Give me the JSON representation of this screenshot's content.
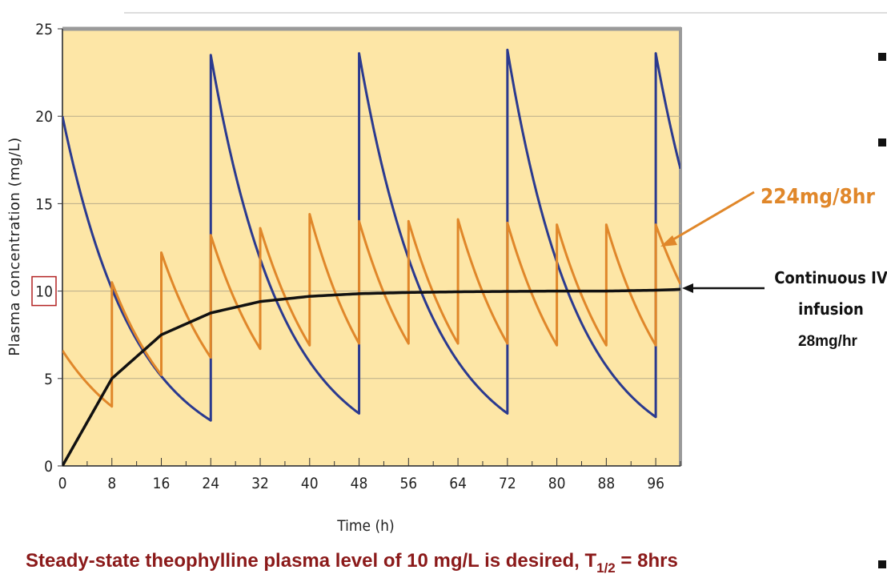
{
  "chart_data": {
    "type": "line",
    "ylabel": "Plasma concentration (mg/L)",
    "xlabel": "Time (h)",
    "xlim": [
      0,
      100
    ],
    "ylim": [
      0,
      25
    ],
    "x_ticks": [
      0,
      8,
      16,
      24,
      32,
      40,
      48,
      56,
      64,
      72,
      80,
      88,
      96
    ],
    "y_ticks": [
      0,
      5,
      10,
      15,
      20,
      25
    ],
    "highlighted_y_tick": 10,
    "grid": "horizontal",
    "series": [
      {
        "color": "#2b3a8f",
        "peaks": [
          [
            0,
            20.0
          ],
          [
            24,
            23.5
          ],
          [
            48,
            23.6
          ],
          [
            72,
            23.8
          ],
          [
            96,
            23.6
          ]
        ],
        "troughs": [
          [
            24,
            2.6
          ],
          [
            48,
            3.0
          ],
          [
            72,
            3.0
          ],
          [
            96,
            2.8
          ]
        ],
        "end": [
          100,
          17.0
        ]
      },
      {
        "color": "#e0872a",
        "peaks": [
          [
            0,
            6.6
          ],
          [
            8,
            10.5
          ],
          [
            16,
            12.2
          ],
          [
            24,
            13.2
          ],
          [
            32,
            13.6
          ],
          [
            40,
            14.4
          ],
          [
            48,
            14.0
          ],
          [
            56,
            14.0
          ],
          [
            64,
            14.1
          ],
          [
            72,
            13.9
          ],
          [
            80,
            13.8
          ],
          [
            88,
            13.8
          ],
          [
            96,
            13.8
          ]
        ],
        "troughs": [
          [
            8,
            3.4
          ],
          [
            16,
            5.2
          ],
          [
            24,
            6.2
          ],
          [
            32,
            6.7
          ],
          [
            40,
            6.9
          ],
          [
            48,
            7.0
          ],
          [
            56,
            7.0
          ],
          [
            64,
            7.0
          ],
          [
            72,
            7.0
          ],
          [
            80,
            6.9
          ],
          [
            88,
            6.9
          ],
          [
            96,
            6.9
          ]
        ],
        "end": [
          100,
          10.4
        ]
      },
      {
        "color": "#111111",
        "x": [
          0,
          8,
          16,
          24,
          32,
          40,
          48,
          56,
          64,
          72,
          80,
          88,
          96,
          100
        ],
        "values": [
          0.0,
          5.0,
          7.5,
          8.75,
          9.4,
          9.7,
          9.85,
          9.92,
          9.96,
          9.98,
          10.0,
          10.0,
          10.05,
          10.1
        ]
      }
    ],
    "annotations": [
      {
        "id": "intermittent",
        "text": "224mg/8hr"
      },
      {
        "id": "infusion",
        "lines": [
          "Continuous IV",
          "infusion",
          "28mg/hr"
        ]
      }
    ]
  },
  "caption": {
    "main": "Steady-state theophylline plasma level of 10 mg/L is desired, T",
    "sub": "1/2",
    "tail": " = 8hrs"
  }
}
